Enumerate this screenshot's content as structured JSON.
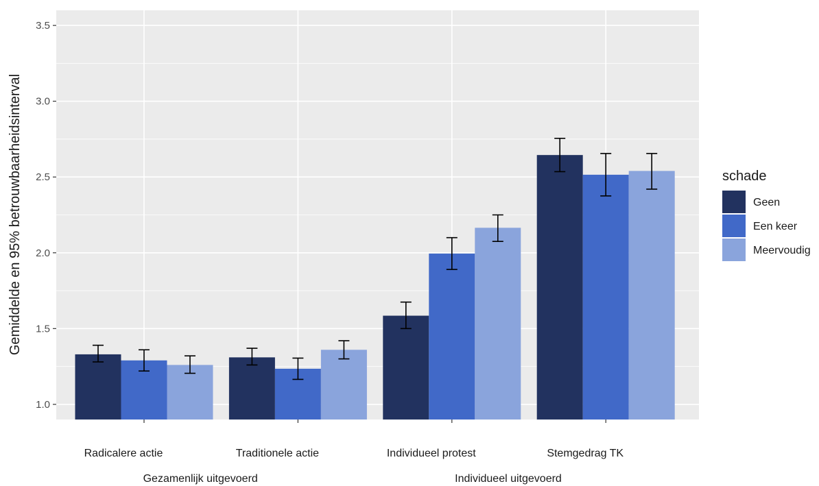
{
  "chart_data": {
    "type": "bar",
    "ylabel": "Gemiddelde en 95% betrouwbaarheidsinterval",
    "ylim": [
      0.9,
      3.6
    ],
    "yticks": [
      1.0,
      1.5,
      2.0,
      2.5,
      3.0,
      3.5
    ],
    "ytick_labels": [
      "1.0",
      "1.5",
      "2.0",
      "2.5",
      "3.0",
      "3.5"
    ],
    "categories": [
      "Radicalere actie",
      "Traditionele actie",
      "Individueel protest",
      "Stemgedrag TK"
    ],
    "groups": [
      {
        "label": "Gezamenlijk uitgevoerd",
        "categories": [
          "Radicalere actie",
          "Traditionele actie"
        ]
      },
      {
        "label": "Individueel uitgevoerd",
        "categories": [
          "Individueel protest",
          "Stemgedrag TK"
        ]
      }
    ],
    "legend": {
      "title": "schade",
      "position": "right"
    },
    "grid": true,
    "series": [
      {
        "name": "Geen",
        "color": "#22325f",
        "values": [
          1.33,
          1.31,
          1.585,
          2.645
        ],
        "ci_low": [
          1.28,
          1.26,
          1.5,
          2.535
        ],
        "ci_high": [
          1.39,
          1.37,
          1.675,
          2.755
        ]
      },
      {
        "name": "Een keer",
        "color": "#4169c8",
        "values": [
          1.29,
          1.235,
          1.995,
          2.515
        ],
        "ci_low": [
          1.22,
          1.165,
          1.89,
          2.375
        ],
        "ci_high": [
          1.36,
          1.305,
          2.1,
          2.655
        ]
      },
      {
        "name": "Meervoudig",
        "color": "#8aa4dc",
        "values": [
          1.26,
          1.36,
          2.165,
          2.54
        ],
        "ci_low": [
          1.205,
          1.3,
          2.075,
          2.42
        ],
        "ci_high": [
          1.32,
          1.42,
          2.25,
          2.655
        ]
      }
    ]
  }
}
